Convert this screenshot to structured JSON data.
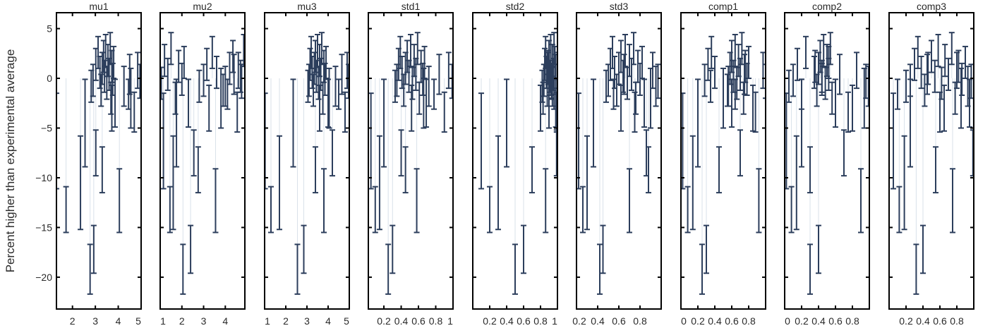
{
  "chart_data": {
    "type": "scatter",
    "ylabel": "Percent higher than experimental average",
    "ylim": [
      -23.2,
      6.6
    ],
    "yticks": [
      5,
      0,
      -5,
      -10,
      -15,
      -20
    ],
    "grid": false,
    "colors": {
      "errorbar": "#2c3e5c",
      "stem": "#d9e1ea",
      "axis": "#000000"
    },
    "points": [
      {
        "y": -6.3,
        "err": 4.8
      },
      {
        "y": -13.2,
        "err": 2.3
      },
      {
        "y": -10.5,
        "err": 4.7
      },
      {
        "y": -4.5,
        "err": 4.4
      },
      {
        "y": -19.2,
        "err": 2.5
      },
      {
        "y": -17.2,
        "err": 2.4
      },
      {
        "y": -0.8,
        "err": 1.6
      },
      {
        "y": -0.2,
        "err": 1.6
      },
      {
        "y": 1.4,
        "err": 1.6
      },
      {
        "y": 2.6,
        "err": 1.6
      },
      {
        "y": 0.6,
        "err": 1.6
      },
      {
        "y": -1.2,
        "err": 1.6
      },
      {
        "y": 1.0,
        "err": 1.6
      },
      {
        "y": 2.2,
        "err": 1.6
      },
      {
        "y": 0.2,
        "err": 1.6
      },
      {
        "y": 2.8,
        "err": 1.6
      },
      {
        "y": -0.5,
        "err": 1.6
      },
      {
        "y": 1.8,
        "err": 1.6
      },
      {
        "y": 0.4,
        "err": 1.6
      },
      {
        "y": 3.0,
        "err": 1.6
      },
      {
        "y": -2.0,
        "err": 1.6
      },
      {
        "y": 1.2,
        "err": 1.6
      },
      {
        "y": -0.1,
        "err": 1.6
      },
      {
        "y": 1.6,
        "err": 1.6
      },
      {
        "y": -2.5,
        "err": 2.4
      },
      {
        "y": -7.5,
        "err": 2.3
      },
      {
        "y": -9.2,
        "err": 2.3
      },
      {
        "y": -3.0,
        "err": 2.3
      },
      {
        "y": -12.3,
        "err": 3.2
      },
      {
        "y": -2.0,
        "err": 3.0
      },
      {
        "y": -0.8,
        "err": 2.0
      },
      {
        "y": -1.6,
        "err": 1.5
      },
      {
        "y": 0.4,
        "err": 2.0
      },
      {
        "y": -3.4,
        "err": 2.0
      },
      {
        "y": 0.8,
        "err": 1.8
      },
      {
        "y": -0.3,
        "err": 1.7
      }
    ],
    "panels": [
      {
        "title": "mu1",
        "xlim": [
          1.3,
          5.0
        ],
        "xticks": [
          {
            "v": 2,
            "l": "2"
          },
          {
            "v": 3,
            "l": "3"
          },
          {
            "v": 4,
            "l": "4"
          },
          {
            "v": 5,
            "l": "5"
          }
        ],
        "x": [
          1.3,
          1.72,
          2.35,
          2.55,
          2.77,
          2.93,
          2.82,
          2.9,
          3.02,
          3.12,
          3.2,
          3.25,
          3.3,
          3.36,
          3.4,
          3.45,
          3.5,
          3.55,
          3.6,
          3.65,
          3.68,
          3.72,
          3.76,
          3.8,
          3.86,
          3.02,
          3.3,
          3.72,
          4.05,
          4.55,
          4.25,
          4.45,
          4.5,
          4.7,
          4.85,
          4.95
        ]
      },
      {
        "title": "mu2",
        "xlim": [
          1.0,
          4.9
        ],
        "xticks": [
          {
            "v": 1,
            "l": "1"
          },
          {
            "v": 2,
            "l": "2"
          },
          {
            "v": 3,
            "l": "3"
          },
          {
            "v": 4,
            "l": "4"
          }
        ],
        "x": [
          1.15,
          1.45,
          1.6,
          1.75,
          2.05,
          2.4,
          2.8,
          3.0,
          3.15,
          3.4,
          3.6,
          3.9,
          4.2,
          4.35,
          4.7,
          4.85,
          1.05,
          1.2,
          1.35,
          1.5,
          1.7,
          1.85,
          2.0,
          2.1,
          2.3,
          2.55,
          2.75,
          3.25,
          3.55,
          3.8,
          4.0,
          4.1,
          4.4,
          4.55,
          4.6,
          4.75
        ]
      },
      {
        "title": "mu3",
        "xlim": [
          1.0,
          5.0
        ],
        "xticks": [
          {
            "v": 1,
            "l": "1"
          },
          {
            "v": 2,
            "l": "2"
          },
          {
            "v": 3,
            "l": "3"
          },
          {
            "v": 4,
            "l": "4"
          },
          {
            "v": 5,
            "l": "5"
          }
        ],
        "x": [
          1.02,
          1.3,
          1.7,
          2.35,
          2.55,
          2.85,
          3.05,
          3.1,
          3.15,
          3.2,
          3.25,
          3.3,
          3.35,
          3.4,
          3.45,
          3.5,
          3.55,
          3.6,
          3.65,
          3.7,
          3.75,
          3.8,
          3.85,
          3.9,
          4.0,
          4.2,
          3.4,
          3.6,
          3.8,
          4.05,
          4.35,
          4.5,
          4.65,
          4.8,
          4.9,
          4.97
        ]
      },
      {
        "title": "std1",
        "xlim": [
          0.02,
          1.0
        ],
        "xticks": [
          {
            "v": 0.2,
            "l": "0.2"
          },
          {
            "v": 0.4,
            "l": "0.4"
          },
          {
            "v": 0.6,
            "l": "0.6"
          },
          {
            "v": 0.8,
            "l": "0.8"
          },
          {
            "v": 1,
            "l": "1"
          }
        ],
        "x": [
          0.05,
          0.1,
          0.15,
          0.2,
          0.25,
          0.3,
          0.33,
          0.35,
          0.37,
          0.39,
          0.41,
          0.43,
          0.45,
          0.47,
          0.49,
          0.51,
          0.53,
          0.55,
          0.57,
          0.59,
          0.61,
          0.63,
          0.65,
          0.67,
          0.69,
          0.4,
          0.45,
          0.52,
          0.58,
          0.66,
          0.72,
          0.78,
          0.84,
          0.9,
          0.95,
          0.99
        ]
      },
      {
        "title": "std2",
        "xlim": [
          0.0,
          1.0
        ],
        "xticks": [
          {
            "v": 0.2,
            "l": "0.2"
          },
          {
            "v": 0.4,
            "l": "0.4"
          },
          {
            "v": 0.6,
            "l": "0.6"
          },
          {
            "v": 0.8,
            "l": "0.8"
          },
          {
            "v": 1,
            "l": "1"
          }
        ],
        "x": [
          0.1,
          0.2,
          0.3,
          0.4,
          0.5,
          0.6,
          0.82,
          0.84,
          0.85,
          0.86,
          0.87,
          0.88,
          0.89,
          0.9,
          0.91,
          0.92,
          0.93,
          0.94,
          0.95,
          0.96,
          0.83,
          0.88,
          0.92,
          0.97,
          0.98,
          0.99,
          0.7,
          0.8,
          0.86,
          0.9,
          0.94,
          0.96,
          0.98,
          0.99,
          1.0,
          0.93
        ]
      },
      {
        "title": "std3",
        "xlim": [
          0.2,
          1.0
        ],
        "xticks": [
          {
            "v": 0.2,
            "l": "0.2"
          },
          {
            "v": 0.4,
            "l": "0.4"
          },
          {
            "v": 0.6,
            "l": "0.6"
          },
          {
            "v": 0.8,
            "l": "0.8"
          }
        ],
        "x": [
          0.22,
          0.26,
          0.3,
          0.36,
          0.42,
          0.45,
          0.48,
          0.5,
          0.52,
          0.54,
          0.56,
          0.58,
          0.6,
          0.62,
          0.64,
          0.66,
          0.68,
          0.7,
          0.72,
          0.74,
          0.76,
          0.78,
          0.8,
          0.82,
          0.84,
          0.86,
          0.88,
          0.62,
          0.7,
          0.9,
          0.95,
          0.55,
          0.65,
          0.75,
          0.92,
          0.97
        ]
      },
      {
        "title": "comp1",
        "xlim": [
          0.0,
          1.0
        ],
        "xticks": [
          {
            "v": 0,
            "l": "0"
          },
          {
            "v": 0.2,
            "l": "0.2"
          },
          {
            "v": 0.4,
            "l": "0.4"
          },
          {
            "v": 0.6,
            "l": "0.6"
          },
          {
            "v": 0.8,
            "l": "0.8"
          }
        ],
        "x": [
          0.02,
          0.08,
          0.14,
          0.2,
          0.25,
          0.3,
          0.35,
          0.28,
          0.32,
          0.36,
          0.4,
          0.55,
          0.58,
          0.6,
          0.62,
          0.64,
          0.66,
          0.68,
          0.7,
          0.72,
          0.74,
          0.76,
          0.78,
          0.8,
          0.6,
          0.7,
          0.45,
          0.85,
          0.92,
          0.5,
          0.56,
          0.64,
          0.75,
          0.88,
          0.97,
          1.0
        ]
      },
      {
        "title": "comp2",
        "xlim": [
          0.0,
          1.0
        ],
        "xticks": [
          {
            "v": 0,
            "l": "0"
          },
          {
            "v": 0.2,
            "l": "0.2"
          },
          {
            "v": 0.4,
            "l": "0.4"
          },
          {
            "v": 0.6,
            "l": "0.6"
          },
          {
            "v": 0.8,
            "l": "0.8"
          }
        ],
        "x": [
          0.02,
          0.08,
          0.14,
          0.2,
          0.3,
          0.4,
          0.05,
          0.1,
          0.15,
          0.25,
          0.35,
          0.38,
          0.4,
          0.42,
          0.44,
          0.46,
          0.48,
          0.5,
          0.52,
          0.54,
          0.56,
          0.36,
          0.44,
          0.52,
          0.6,
          0.7,
          0.3,
          0.8,
          0.9,
          0.94,
          0.99,
          0.2,
          0.65,
          0.75,
          0.85,
          0.96
        ]
      },
      {
        "title": "comp3",
        "xlim": [
          0.0,
          1.0
        ],
        "xticks": [
          {
            "v": 0.2,
            "l": "0.2"
          },
          {
            "v": 0.4,
            "l": "0.4"
          },
          {
            "v": 0.6,
            "l": "0.6"
          },
          {
            "v": 0.8,
            "l": "0.8"
          }
        ],
        "x": [
          0.05,
          0.12,
          0.18,
          0.25,
          0.32,
          0.4,
          0.2,
          0.25,
          0.3,
          0.34,
          0.38,
          0.42,
          0.46,
          0.5,
          0.54,
          0.58,
          0.62,
          0.66,
          0.7,
          0.74,
          0.78,
          0.82,
          0.86,
          0.9,
          0.95,
          0.99,
          0.55,
          0.65,
          0.75,
          0.85,
          0.93,
          0.1,
          0.45,
          0.6,
          0.8,
          0.97
        ]
      }
    ]
  }
}
